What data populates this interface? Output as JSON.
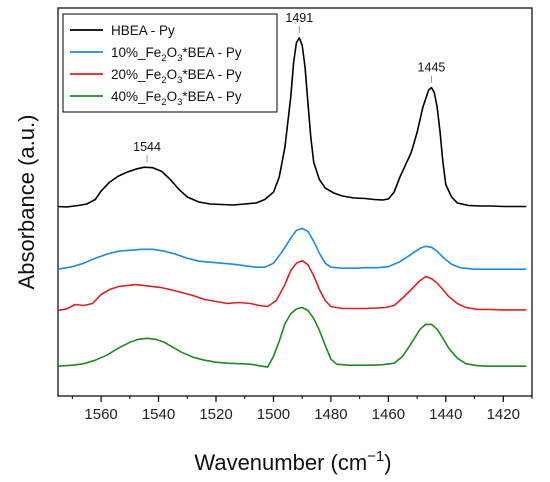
{
  "chart_data": {
    "type": "line",
    "xlabel": "Wavenumber (cm⁻¹)",
    "ylabel": "Absorbance (a.u.)",
    "xlim": [
      1575,
      1410
    ],
    "x_reversed": true,
    "x_ticks": [
      1560,
      1540,
      1520,
      1500,
      1480,
      1460,
      1440,
      1420
    ],
    "y_ticks_shown": false,
    "legend_position": "top-left",
    "series": [
      {
        "name": "HBEA - Py",
        "color": "#000000",
        "offset": 3.6,
        "points": [
          [
            1575,
            0.01
          ],
          [
            1572,
            0.0
          ],
          [
            1568,
            0.03
          ],
          [
            1565,
            0.06
          ],
          [
            1562,
            0.15
          ],
          [
            1560,
            0.32
          ],
          [
            1557,
            0.5
          ],
          [
            1554,
            0.62
          ],
          [
            1551,
            0.7
          ],
          [
            1548,
            0.76
          ],
          [
            1545,
            0.8
          ],
          [
            1542,
            0.79
          ],
          [
            1539,
            0.72
          ],
          [
            1536,
            0.56
          ],
          [
            1533,
            0.36
          ],
          [
            1530,
            0.2
          ],
          [
            1526,
            0.1
          ],
          [
            1522,
            0.06
          ],
          [
            1518,
            0.05
          ],
          [
            1514,
            0.04
          ],
          [
            1510,
            0.06
          ],
          [
            1506,
            0.08
          ],
          [
            1503,
            0.15
          ],
          [
            1500,
            0.3
          ],
          [
            1498,
            0.6
          ],
          [
            1496,
            1.2
          ],
          [
            1494,
            2.2
          ],
          [
            1493,
            2.9
          ],
          [
            1492,
            3.3
          ],
          [
            1491,
            3.4
          ],
          [
            1490,
            3.25
          ],
          [
            1489,
            2.8
          ],
          [
            1488,
            2.1
          ],
          [
            1487,
            1.4
          ],
          [
            1486,
            0.9
          ],
          [
            1484,
            0.55
          ],
          [
            1482,
            0.38
          ],
          [
            1479,
            0.28
          ],
          [
            1476,
            0.22
          ],
          [
            1472,
            0.18
          ],
          [
            1468,
            0.17
          ],
          [
            1465,
            0.15
          ],
          [
            1462,
            0.14
          ],
          [
            1460,
            0.16
          ],
          [
            1458,
            0.3
          ],
          [
            1456,
            0.6
          ],
          [
            1454,
            0.85
          ],
          [
            1452,
            1.1
          ],
          [
            1450,
            1.5
          ],
          [
            1448,
            2.0
          ],
          [
            1446,
            2.35
          ],
          [
            1445,
            2.4
          ],
          [
            1444,
            2.3
          ],
          [
            1443,
            2.0
          ],
          [
            1442,
            1.5
          ],
          [
            1441,
            0.9
          ],
          [
            1440,
            0.45
          ],
          [
            1438,
            0.2
          ],
          [
            1436,
            0.08
          ],
          [
            1432,
            0.03
          ],
          [
            1428,
            0.02
          ],
          [
            1424,
            0.02
          ],
          [
            1420,
            0.01
          ],
          [
            1416,
            0.01
          ],
          [
            1412,
            0.01
          ]
        ]
      },
      {
        "name": "10%_Fe2O3*BEA - Py",
        "color": "#1e88e5",
        "offset": 2.35,
        "points": [
          [
            1575,
            0.0
          ],
          [
            1570,
            0.05
          ],
          [
            1566,
            0.12
          ],
          [
            1562,
            0.22
          ],
          [
            1558,
            0.3
          ],
          [
            1554,
            0.36
          ],
          [
            1550,
            0.38
          ],
          [
            1546,
            0.4
          ],
          [
            1542,
            0.4
          ],
          [
            1538,
            0.36
          ],
          [
            1534,
            0.3
          ],
          [
            1530,
            0.22
          ],
          [
            1526,
            0.16
          ],
          [
            1522,
            0.14
          ],
          [
            1518,
            0.12
          ],
          [
            1514,
            0.1
          ],
          [
            1510,
            0.07
          ],
          [
            1506,
            0.04
          ],
          [
            1503,
            0.04
          ],
          [
            1500,
            0.12
          ],
          [
            1497,
            0.35
          ],
          [
            1494,
            0.62
          ],
          [
            1492,
            0.78
          ],
          [
            1490,
            0.82
          ],
          [
            1488,
            0.76
          ],
          [
            1486,
            0.56
          ],
          [
            1484,
            0.32
          ],
          [
            1482,
            0.12
          ],
          [
            1480,
            0.04
          ],
          [
            1476,
            0.02
          ],
          [
            1472,
            0.02
          ],
          [
            1468,
            0.03
          ],
          [
            1464,
            0.03
          ],
          [
            1460,
            0.05
          ],
          [
            1456,
            0.15
          ],
          [
            1452,
            0.3
          ],
          [
            1449,
            0.42
          ],
          [
            1447,
            0.46
          ],
          [
            1445,
            0.44
          ],
          [
            1443,
            0.36
          ],
          [
            1441,
            0.24
          ],
          [
            1438,
            0.1
          ],
          [
            1435,
            0.03
          ],
          [
            1430,
            0.0
          ],
          [
            1425,
            0.0
          ],
          [
            1420,
            0.0
          ],
          [
            1415,
            0.0
          ],
          [
            1412,
            0.0
          ]
        ]
      },
      {
        "name": "20%_Fe2O3*BEA - Py",
        "color": "#e02020",
        "offset": 1.52,
        "points": [
          [
            1575,
            0.0
          ],
          [
            1572,
            0.03
          ],
          [
            1569,
            0.12
          ],
          [
            1566,
            0.1
          ],
          [
            1563,
            0.14
          ],
          [
            1560,
            0.32
          ],
          [
            1557,
            0.42
          ],
          [
            1554,
            0.48
          ],
          [
            1551,
            0.5
          ],
          [
            1548,
            0.52
          ],
          [
            1545,
            0.5
          ],
          [
            1542,
            0.48
          ],
          [
            1539,
            0.46
          ],
          [
            1536,
            0.42
          ],
          [
            1532,
            0.36
          ],
          [
            1528,
            0.3
          ],
          [
            1524,
            0.22
          ],
          [
            1520,
            0.18
          ],
          [
            1516,
            0.14
          ],
          [
            1512,
            0.16
          ],
          [
            1508,
            0.14
          ],
          [
            1505,
            0.1
          ],
          [
            1502,
            0.08
          ],
          [
            1499,
            0.2
          ],
          [
            1496,
            0.52
          ],
          [
            1494,
            0.8
          ],
          [
            1492,
            0.95
          ],
          [
            1490,
            1.0
          ],
          [
            1488,
            0.92
          ],
          [
            1486,
            0.7
          ],
          [
            1484,
            0.42
          ],
          [
            1482,
            0.2
          ],
          [
            1480,
            0.08
          ],
          [
            1476,
            0.04
          ],
          [
            1472,
            0.04
          ],
          [
            1468,
            0.04
          ],
          [
            1464,
            0.05
          ],
          [
            1461,
            0.06
          ],
          [
            1458,
            0.1
          ],
          [
            1455,
            0.25
          ],
          [
            1452,
            0.42
          ],
          [
            1449,
            0.6
          ],
          [
            1447,
            0.68
          ],
          [
            1445,
            0.64
          ],
          [
            1443,
            0.55
          ],
          [
            1441,
            0.42
          ],
          [
            1439,
            0.28
          ],
          [
            1436,
            0.14
          ],
          [
            1433,
            0.06
          ],
          [
            1429,
            0.02
          ],
          [
            1425,
            0.02
          ],
          [
            1420,
            0.01
          ],
          [
            1415,
            0.01
          ],
          [
            1412,
            0.01
          ]
        ]
      },
      {
        "name": "40%_Fe2O3*BEA - Py",
        "color": "#1f8a1f",
        "offset": 0.4,
        "points": [
          [
            1575,
            0.0
          ],
          [
            1570,
            0.02
          ],
          [
            1566,
            0.05
          ],
          [
            1562,
            0.12
          ],
          [
            1558,
            0.22
          ],
          [
            1554,
            0.36
          ],
          [
            1550,
            0.48
          ],
          [
            1547,
            0.54
          ],
          [
            1544,
            0.56
          ],
          [
            1541,
            0.54
          ],
          [
            1538,
            0.48
          ],
          [
            1535,
            0.38
          ],
          [
            1532,
            0.28
          ],
          [
            1528,
            0.18
          ],
          [
            1524,
            0.12
          ],
          [
            1520,
            0.08
          ],
          [
            1516,
            0.06
          ],
          [
            1512,
            0.05
          ],
          [
            1508,
            0.04
          ],
          [
            1504,
            0.0
          ],
          [
            1502,
            -0.02
          ],
          [
            1500,
            0.2
          ],
          [
            1498,
            0.5
          ],
          [
            1496,
            0.85
          ],
          [
            1494,
            1.05
          ],
          [
            1492,
            1.15
          ],
          [
            1490,
            1.18
          ],
          [
            1488,
            1.12
          ],
          [
            1486,
            0.96
          ],
          [
            1484,
            0.72
          ],
          [
            1482,
            0.42
          ],
          [
            1480,
            0.14
          ],
          [
            1478,
            0.04
          ],
          [
            1474,
            0.02
          ],
          [
            1470,
            0.02
          ],
          [
            1466,
            0.02
          ],
          [
            1462,
            0.03
          ],
          [
            1458,
            0.06
          ],
          [
            1455,
            0.2
          ],
          [
            1452,
            0.46
          ],
          [
            1449,
            0.74
          ],
          [
            1447,
            0.84
          ],
          [
            1445,
            0.84
          ],
          [
            1443,
            0.74
          ],
          [
            1441,
            0.56
          ],
          [
            1439,
            0.36
          ],
          [
            1436,
            0.16
          ],
          [
            1433,
            0.05
          ],
          [
            1429,
            0.01
          ],
          [
            1425,
            0.0
          ],
          [
            1420,
            0.0
          ],
          [
            1415,
            0.0
          ],
          [
            1412,
            0.0
          ]
        ]
      }
    ],
    "annotations": [
      {
        "label": "1544",
        "x": 1544,
        "series": 0
      },
      {
        "label": "1491",
        "x": 1491,
        "series": 0
      },
      {
        "label": "1445",
        "x": 1445,
        "series": 0
      }
    ]
  },
  "legend": {
    "items": [
      {
        "base": "HBEA - Py",
        "sub": "",
        "after": ""
      },
      {
        "base": "10%_Fe",
        "sub": "2",
        "mid": "O",
        "sub2": "3",
        "after": "*BEA - Py"
      },
      {
        "base": "20%_Fe",
        "sub": "2",
        "mid": "O",
        "sub2": "3",
        "after": "*BEA - Py"
      },
      {
        "base": "40%_Fe",
        "sub": "2",
        "mid": "O",
        "sub2": "3",
        "after": "*BEA - Py"
      }
    ]
  },
  "axes": {
    "x_title_main": "Wavenumber (cm",
    "x_title_sup": "−1",
    "x_title_end": ")",
    "y_title": "Absorbance (a.u.)"
  }
}
